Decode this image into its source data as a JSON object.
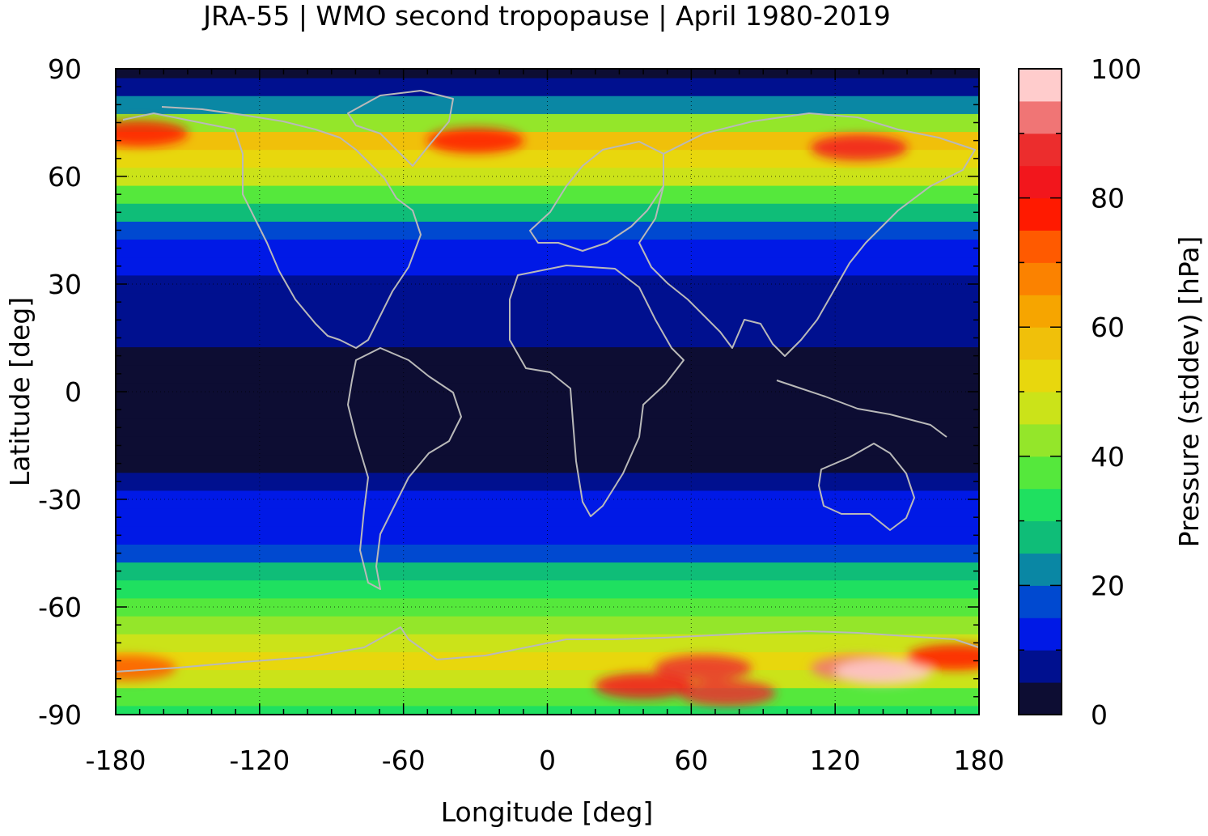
{
  "chart_data": {
    "type": "heatmap",
    "title": "JRA-55 | WMO second tropopause | April 1980-2019",
    "xlabel": "Longitude [deg]",
    "ylabel": "Latitude [deg]",
    "colorbar_label": "Pressure (stddev) [hPa]",
    "xlim": [
      -180,
      180
    ],
    "ylim": [
      -90,
      90
    ],
    "x_ticks": [
      "-180",
      "-120",
      "-60",
      "0",
      "60",
      "120",
      "180"
    ],
    "y_ticks": [
      "90",
      "60",
      "30",
      "0",
      "-30",
      "-60",
      "-90"
    ],
    "colorbar_range": [
      0,
      100
    ],
    "colorbar_ticks": [
      "100",
      "80",
      "60",
      "40",
      "20",
      "0"
    ],
    "colorbar_colors": [
      "#0d0d33",
      "#00108f",
      "#0019e6",
      "#0049d0",
      "#0a87a4",
      "#0fbd78",
      "#1fe060",
      "#55e83c",
      "#94e62a",
      "#cbe319",
      "#e8d70d",
      "#f0c00a",
      "#f6a500",
      "#fb8200",
      "#ff5a00",
      "#ff1a00",
      "#f2161c",
      "#ec2d2d",
      "#f07575",
      "#ffcccc"
    ],
    "grid": true,
    "latitude_profile": [
      {
        "lat": -90,
        "value": 30
      },
      {
        "lat": -85,
        "value": 38
      },
      {
        "lat": -80,
        "value": 46
      },
      {
        "lat": -75,
        "value": 50
      },
      {
        "lat": -70,
        "value": 45
      },
      {
        "lat": -65,
        "value": 40
      },
      {
        "lat": -60,
        "value": 38
      },
      {
        "lat": -55,
        "value": 33
      },
      {
        "lat": -50,
        "value": 25
      },
      {
        "lat": -45,
        "value": 18
      },
      {
        "lat": -40,
        "value": 13
      },
      {
        "lat": -35,
        "value": 12
      },
      {
        "lat": -30,
        "value": 11
      },
      {
        "lat": -25,
        "value": 8
      },
      {
        "lat": -20,
        "value": 4
      },
      {
        "lat": -15,
        "value": 3
      },
      {
        "lat": -10,
        "value": 3
      },
      {
        "lat": -5,
        "value": 3
      },
      {
        "lat": 0,
        "value": 3
      },
      {
        "lat": 5,
        "value": 4
      },
      {
        "lat": 10,
        "value": 3
      },
      {
        "lat": 15,
        "value": 5
      },
      {
        "lat": 20,
        "value": 8
      },
      {
        "lat": 25,
        "value": 5
      },
      {
        "lat": 30,
        "value": 5
      },
      {
        "lat": 35,
        "value": 10
      },
      {
        "lat": 40,
        "value": 13
      },
      {
        "lat": 45,
        "value": 18
      },
      {
        "lat": 50,
        "value": 27
      },
      {
        "lat": 55,
        "value": 38
      },
      {
        "lat": 60,
        "value": 45
      },
      {
        "lat": 65,
        "value": 52
      },
      {
        "lat": 70,
        "value": 55
      },
      {
        "lat": 75,
        "value": 40
      },
      {
        "lat": 80,
        "value": 20
      },
      {
        "lat": 85,
        "value": 5
      },
      {
        "lat": 90,
        "value": 3
      }
    ],
    "hotspots": [
      {
        "lon": -30,
        "lat": 70,
        "value": 78
      },
      {
        "lon": -170,
        "lat": 72,
        "value": 75
      },
      {
        "lon": 130,
        "lat": 68,
        "value": 82
      },
      {
        "lon": 65,
        "lat": -77,
        "value": 88
      },
      {
        "lon": 130,
        "lat": -77,
        "value": 90
      },
      {
        "lon": 140,
        "lat": -78,
        "value": 98
      },
      {
        "lon": 75,
        "lat": -84,
        "value": 86
      },
      {
        "lon": 170,
        "lat": -74,
        "value": 76
      },
      {
        "lon": -175,
        "lat": -77,
        "value": 72
      },
      {
        "lon": 40,
        "lat": -82,
        "value": 80
      }
    ]
  }
}
